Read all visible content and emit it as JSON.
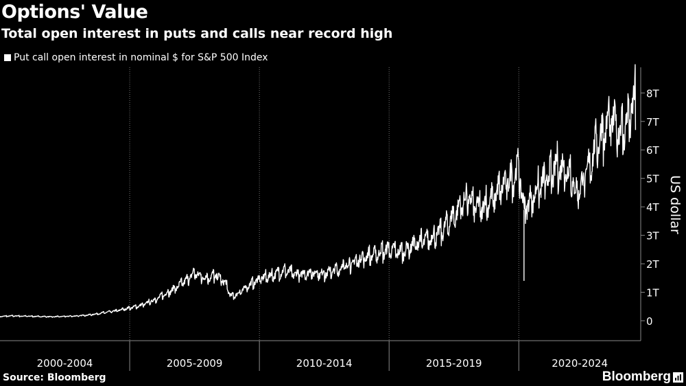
{
  "chart_data": {
    "type": "line",
    "title": "Options' Value",
    "subtitle": "Total open interest in puts and calls near record high",
    "legend": [
      {
        "label": "Put call open interest in nominal $ for S&P 500 Index",
        "color": "#ffffff"
      }
    ],
    "ylabel": "US dollar",
    "xlabel": "",
    "xlim": [
      2000.0,
      2024.7
    ],
    "ylim": [
      -0.7,
      8.9
    ],
    "y_ticks": [
      {
        "value": 0,
        "label": "0"
      },
      {
        "value": 1,
        "label": "1T"
      },
      {
        "value": 2,
        "label": "2T"
      },
      {
        "value": 3,
        "label": "3T"
      },
      {
        "value": 4,
        "label": "4T"
      },
      {
        "value": 5,
        "label": "5T"
      },
      {
        "value": 6,
        "label": "6T"
      },
      {
        "value": 7,
        "label": "7T"
      },
      {
        "value": 8,
        "label": "8T"
      }
    ],
    "x_groups": [
      {
        "label": "2000-2004",
        "start": 2000,
        "end": 2005
      },
      {
        "label": "2005-2009",
        "start": 2005,
        "end": 2010
      },
      {
        "label": "2010-2014",
        "start": 2010,
        "end": 2015
      },
      {
        "label": "2015-2019",
        "start": 2015,
        "end": 2020
      },
      {
        "label": "2020-2024",
        "start": 2020,
        "end": 2024.7
      }
    ],
    "grid": "vertical",
    "series": [
      {
        "name": "Put call open interest in nominal $ for S&P 500 Index",
        "color": "#ffffff",
        "x": [
          2000.0,
          2000.5,
          2001.0,
          2001.5,
          2002.0,
          2002.5,
          2003.0,
          2003.5,
          2004.0,
          2004.5,
          2005.0,
          2005.5,
          2006.0,
          2006.5,
          2007.0,
          2007.3,
          2007.5,
          2007.7,
          2008.0,
          2008.3,
          2008.7,
          2008.9,
          2009.2,
          2009.6,
          2010.0,
          2010.5,
          2011.0,
          2011.5,
          2012.0,
          2012.5,
          2013.0,
          2013.5,
          2014.0,
          2014.5,
          2015.0,
          2015.5,
          2016.0,
          2016.5,
          2017.0,
          2017.5,
          2018.0,
          2018.5,
          2019.0,
          2019.5,
          2020.0,
          2020.2,
          2020.5,
          2021.0,
          2021.5,
          2022.0,
          2022.2,
          2022.5,
          2023.0,
          2023.5,
          2024.0,
          2024.5
        ],
        "values": [
          0.15,
          0.17,
          0.16,
          0.15,
          0.14,
          0.15,
          0.17,
          0.21,
          0.28,
          0.35,
          0.45,
          0.55,
          0.75,
          1.0,
          1.3,
          1.5,
          1.7,
          1.55,
          1.5,
          1.6,
          1.3,
          0.85,
          0.95,
          1.25,
          1.45,
          1.6,
          1.75,
          1.6,
          1.7,
          1.65,
          1.8,
          2.0,
          2.2,
          2.35,
          2.5,
          2.4,
          2.7,
          2.85,
          3.1,
          3.7,
          4.3,
          3.9,
          4.3,
          4.8,
          5.3,
          3.9,
          4.3,
          4.9,
          5.4,
          5.2,
          4.4,
          4.9,
          6.2,
          7.0,
          6.6,
          7.7
        ]
      }
    ],
    "annotations": [
      {
        "type": "dip",
        "x": 2020.2,
        "value": 1.4
      }
    ]
  },
  "source": "Source: Bloomberg",
  "brand": "Bloomberg",
  "icons": {
    "brand_mark": "bloomberg-chart-icon"
  }
}
